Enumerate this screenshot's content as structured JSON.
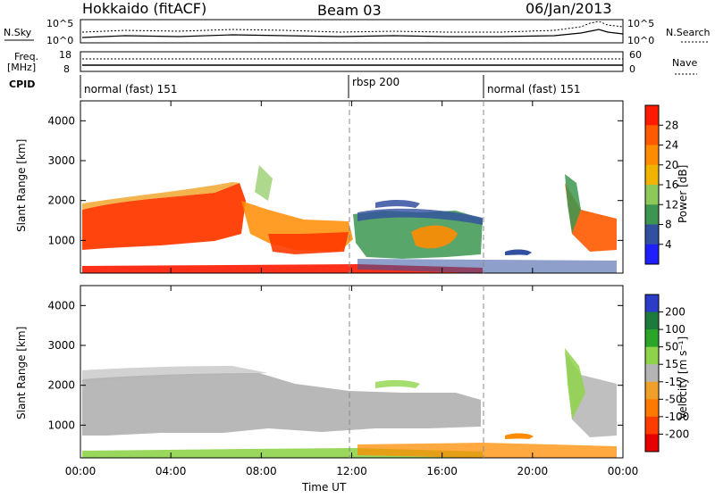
{
  "header": {
    "station": "Hokkaido (fitACF)",
    "beam": "Beam 03",
    "date": "06/Jan/2013"
  },
  "noise": {
    "left_label": "N.Sky",
    "right_label": "N.Search",
    "left_top": "10^5",
    "left_bottom": "10^0",
    "right_top": "10^5",
    "right_bottom": "10^0"
  },
  "freq": {
    "label": "Freq.",
    "unit": "[MHz]",
    "left_top": "18",
    "left_bottom": "8",
    "right_label": "Nave",
    "right_top": "60",
    "right_bottom": "0"
  },
  "cpid": {
    "label": "CPID",
    "segments": [
      "normal (fast) 151",
      "rbsp 200",
      "normal (fast) 151"
    ]
  },
  "power_panel": {
    "ylabel": "Slant Range [km]",
    "cbar_label": "Power [dB]",
    "cbar_ticks": [
      "28",
      "24",
      "20",
      "16",
      "12",
      "8",
      "4"
    ],
    "cbar_colors": [
      "#ff1a00",
      "#ff5a00",
      "#ff8c00",
      "#f0b400",
      "#8cc85a",
      "#3c9650",
      "#3250a0",
      "#1e1eff"
    ]
  },
  "velocity_panel": {
    "ylabel": "Slant Range [km]",
    "cbar_label": "Velocity [m s⁻¹]",
    "cbar_ticks": [
      "200",
      "100",
      "50",
      "15",
      "-15",
      "-50",
      "-100",
      "-200"
    ],
    "cbar_colors": [
      "#2a3cc8",
      "#1e7a3c",
      "#2aa52a",
      "#8ed44a",
      "#b4b4b4",
      "#f0a028",
      "#ff7800",
      "#ff3c00",
      "#e60000"
    ]
  },
  "xaxis": {
    "label": "Time UT"
  },
  "chart_data": {
    "type": "heatmap",
    "x": [
      "00:00",
      "04:00",
      "08:00",
      "12:00",
      "16:00",
      "20:00",
      "00:00"
    ],
    "x_hours": [
      0,
      4,
      8,
      12,
      16,
      20,
      24
    ],
    "xlim": [
      0,
      24
    ],
    "ylim": [
      180,
      4500
    ],
    "y_ticks": [
      1000,
      2000,
      3000,
      4000
    ],
    "mode_changes_hours": [
      12,
      18
    ],
    "xlabel": "Time UT",
    "ylabel": "Slant Range [km]"
  }
}
